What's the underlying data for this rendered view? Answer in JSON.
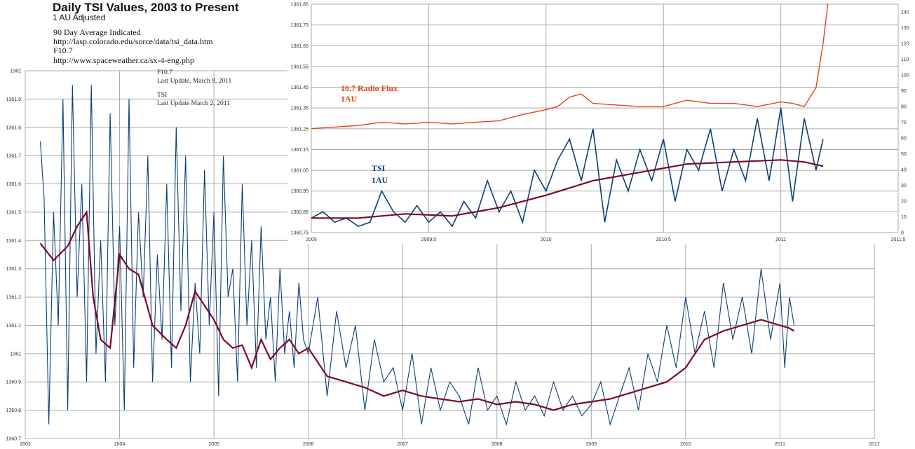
{
  "header": {
    "title": "Daily TSI Values, 2003 to Present",
    "subtitle": "1 AU Adjusted",
    "notes": [
      "90 Day Average Indicated",
      "http://lasp.colorado.edu/sorce/data/tsi_data.htm",
      "F10.7",
      "http://www.spaceweather.ca/sx-4-eng.php"
    ]
  },
  "updates": {
    "f107_label": "F10.7",
    "f107_date": "Last Update, March 9, 2011",
    "tsi_label": "TSI",
    "tsi_date": "Last Update March 2, 2011"
  },
  "colors": {
    "tsi": "#0b3f78",
    "avg": "#7a0a26",
    "radio": "#ee3f12",
    "grid": "#a9a9a9"
  },
  "chart_data": [
    {
      "type": "line",
      "title": "Daily TSI Values, 2003 to Present",
      "subtitle": "1 AU Adjusted",
      "xlim": [
        2003,
        2012
      ],
      "ylim": [
        1360.7,
        1362
      ],
      "x_ticks": [
        2003,
        2004,
        2005,
        2006,
        2007,
        2008,
        2009,
        2010,
        2011,
        2012
      ],
      "y_ticks": [
        "1360.7",
        "1360.8",
        "1360.9",
        "1361",
        "1361.1",
        "1361.2",
        "1361.3",
        "1361.4",
        "1361.5",
        "1361.6",
        "1361.7",
        "1361.8",
        "1361.9",
        "1362"
      ],
      "grid": true,
      "series": [
        {
          "role": "daily-tsi",
          "x": [
            2003.16,
            2003.2,
            2003.25,
            2003.3,
            2003.35,
            2003.4,
            2003.45,
            2003.5,
            2003.55,
            2003.6,
            2003.65,
            2003.7,
            2003.75,
            2003.8,
            2003.85,
            2003.9,
            2003.95,
            2004.0,
            2004.05,
            2004.1,
            2004.15,
            2004.2,
            2004.25,
            2004.3,
            2004.35,
            2004.4,
            2004.45,
            2004.5,
            2004.55,
            2004.6,
            2004.65,
            2004.7,
            2004.75,
            2004.8,
            2004.85,
            2004.9,
            2004.95,
            2005.0,
            2005.05,
            2005.1,
            2005.15,
            2005.2,
            2005.25,
            2005.3,
            2005.35,
            2005.4,
            2005.45,
            2005.5,
            2005.55,
            2005.6,
            2005.65,
            2005.7,
            2005.75,
            2005.8,
            2005.85,
            2005.9,
            2005.95,
            2006.0,
            2006.1,
            2006.2,
            2006.3,
            2006.4,
            2006.5,
            2006.6,
            2006.7,
            2006.8,
            2006.9,
            2007.0,
            2007.1,
            2007.2,
            2007.3,
            2007.4,
            2007.5,
            2007.6,
            2007.7,
            2007.8,
            2007.9,
            2008.0,
            2008.1,
            2008.2,
            2008.3,
            2008.4,
            2008.5,
            2008.6,
            2008.7,
            2008.8,
            2008.9,
            2009.0,
            2009.1,
            2009.2,
            2009.3,
            2009.4,
            2009.5,
            2009.6,
            2009.7,
            2009.8,
            2009.9,
            2010.0,
            2010.1,
            2010.2,
            2010.3,
            2010.4,
            2010.5,
            2010.6,
            2010.7,
            2010.8,
            2010.9,
            2011.0,
            2011.05,
            2011.1,
            2011.15
          ],
          "y": [
            1361.75,
            1361.55,
            1360.75,
            1361.5,
            1361.1,
            1361.9,
            1360.8,
            1361.95,
            1361.2,
            1361.6,
            1360.9,
            1361.95,
            1361.0,
            1361.4,
            1360.9,
            1361.85,
            1361.1,
            1361.45,
            1360.8,
            1361.9,
            1360.95,
            1361.5,
            1361.2,
            1361.7,
            1360.9,
            1361.35,
            1361.05,
            1361.6,
            1360.95,
            1361.8,
            1361.15,
            1361.7,
            1360.9,
            1361.25,
            1361.0,
            1361.65,
            1361.1,
            1361.5,
            1360.85,
            1361.7,
            1361.2,
            1361.3,
            1360.9,
            1361.6,
            1361.1,
            1361.4,
            1360.95,
            1361.45,
            1361.05,
            1361.2,
            1360.9,
            1361.3,
            1361.0,
            1361.15,
            1360.95,
            1361.25,
            1361.05,
            1361.0,
            1361.2,
            1360.85,
            1361.15,
            1360.95,
            1361.1,
            1360.8,
            1361.05,
            1360.9,
            1360.95,
            1360.8,
            1361.0,
            1360.75,
            1360.95,
            1360.8,
            1360.9,
            1360.85,
            1360.75,
            1360.95,
            1360.8,
            1360.85,
            1360.75,
            1360.9,
            1360.8,
            1360.85,
            1360.78,
            1360.9,
            1360.8,
            1360.85,
            1360.78,
            1360.82,
            1360.9,
            1360.75,
            1360.85,
            1360.95,
            1360.8,
            1361.0,
            1360.9,
            1361.1,
            1360.95,
            1361.2,
            1361.0,
            1361.15,
            1360.95,
            1361.25,
            1361.05,
            1361.2,
            1361.0,
            1361.3,
            1361.05,
            1361.25,
            1360.95,
            1361.2,
            1361.1
          ]
        },
        {
          "role": "90-day-average",
          "x": [
            2003.16,
            2003.3,
            2003.45,
            2003.55,
            2003.65,
            2003.72,
            2003.8,
            2003.9,
            2004.0,
            2004.1,
            2004.2,
            2004.35,
            2004.5,
            2004.6,
            2004.7,
            2004.8,
            2004.9,
            2005.0,
            2005.1,
            2005.2,
            2005.3,
            2005.4,
            2005.5,
            2005.6,
            2005.7,
            2005.8,
            2005.9,
            2006.0,
            2006.2,
            2006.4,
            2006.6,
            2006.8,
            2007.0,
            2007.2,
            2007.4,
            2007.6,
            2007.8,
            2008.0,
            2008.2,
            2008.4,
            2008.6,
            2008.8,
            2009.0,
            2009.2,
            2009.4,
            2009.6,
            2009.8,
            2010.0,
            2010.2,
            2010.4,
            2010.6,
            2010.8,
            2011.0,
            2011.1,
            2011.15
          ],
          "y": [
            1361.39,
            1361.33,
            1361.38,
            1361.45,
            1361.5,
            1361.2,
            1361.05,
            1361.02,
            1361.35,
            1361.3,
            1361.28,
            1361.1,
            1361.05,
            1361.02,
            1361.1,
            1361.22,
            1361.17,
            1361.12,
            1361.05,
            1361.02,
            1361.03,
            1360.95,
            1361.05,
            1360.98,
            1361.02,
            1361.05,
            1361.0,
            1361.02,
            1360.92,
            1360.9,
            1360.88,
            1360.85,
            1360.87,
            1360.85,
            1360.84,
            1360.83,
            1360.84,
            1360.82,
            1360.83,
            1360.82,
            1360.8,
            1360.82,
            1360.83,
            1360.84,
            1360.86,
            1360.88,
            1360.9,
            1360.95,
            1361.05,
            1361.08,
            1361.1,
            1361.12,
            1361.1,
            1361.09,
            1361.08
          ]
        }
      ]
    },
    {
      "type": "line",
      "xlim": [
        2009,
        2011.5
      ],
      "ylim": [
        1360.75,
        1361.85
      ],
      "y2lim": [
        0,
        145
      ],
      "x_ticks": [
        "2009",
        "2009.5",
        "2010",
        "2010.5",
        "2011",
        "2011.5"
      ],
      "y_ticks": [
        "1360.75",
        "1360.85",
        "1360.95",
        "1361.05",
        "1361.15",
        "1361.25",
        "1361.35",
        "1361.45",
        "1361.55",
        "1361.65",
        "1361.75",
        "1361.85"
      ],
      "y2_ticks": [
        "0",
        "10",
        "20",
        "30",
        "40",
        "50",
        "60",
        "70",
        "80",
        "90",
        "100",
        "110",
        "120",
        "130",
        "140"
      ],
      "grid": true,
      "labels": {
        "radio": [
          "10.7 Radio Flux",
          "1AU"
        ],
        "tsi": [
          "TSI",
          "1AU"
        ]
      },
      "series": [
        {
          "role": "radio-flux",
          "axis": "right",
          "x": [
            2009.0,
            2009.1,
            2009.2,
            2009.3,
            2009.4,
            2009.5,
            2009.6,
            2009.7,
            2009.8,
            2009.9,
            2010.0,
            2010.05,
            2010.1,
            2010.15,
            2010.2,
            2010.3,
            2010.4,
            2010.5,
            2010.6,
            2010.7,
            2010.8,
            2010.9,
            2011.0,
            2011.05,
            2011.1,
            2011.15,
            2011.18,
            2011.2
          ],
          "y": [
            66,
            67,
            68,
            70,
            69,
            70,
            69,
            70,
            71,
            75,
            78,
            80,
            86,
            88,
            82,
            81,
            80,
            80,
            84,
            82,
            82,
            80,
            83,
            82,
            80,
            92,
            120,
            145
          ]
        },
        {
          "role": "tsi-daily",
          "axis": "left",
          "x": [
            2009.0,
            2009.05,
            2009.1,
            2009.15,
            2009.2,
            2009.25,
            2009.3,
            2009.35,
            2009.4,
            2009.45,
            2009.5,
            2009.55,
            2009.6,
            2009.65,
            2009.7,
            2009.75,
            2009.8,
            2009.85,
            2009.9,
            2009.95,
            2010.0,
            2010.05,
            2010.1,
            2010.15,
            2010.2,
            2010.25,
            2010.3,
            2010.35,
            2010.4,
            2010.45,
            2010.5,
            2010.55,
            2010.6,
            2010.65,
            2010.7,
            2010.75,
            2010.8,
            2010.85,
            2010.9,
            2010.95,
            2011.0,
            2011.05,
            2011.1,
            2011.15,
            2011.18
          ],
          "y": [
            1360.82,
            1360.85,
            1360.8,
            1360.82,
            1360.78,
            1360.8,
            1360.95,
            1360.85,
            1360.8,
            1360.88,
            1360.8,
            1360.85,
            1360.78,
            1360.9,
            1360.82,
            1361.0,
            1360.85,
            1360.95,
            1360.8,
            1361.05,
            1360.95,
            1361.1,
            1361.2,
            1361.0,
            1361.25,
            1360.8,
            1361.1,
            1360.95,
            1361.15,
            1361.0,
            1361.2,
            1360.9,
            1361.15,
            1361.05,
            1361.25,
            1360.95,
            1361.15,
            1361.0,
            1361.3,
            1361.0,
            1361.35,
            1360.9,
            1361.3,
            1361.05,
            1361.2
          ]
        },
        {
          "role": "tsi-average",
          "axis": "left",
          "x": [
            2009.0,
            2009.2,
            2009.4,
            2009.6,
            2009.8,
            2010.0,
            2010.2,
            2010.4,
            2010.6,
            2010.8,
            2011.0,
            2011.1,
            2011.18
          ],
          "y": [
            1360.82,
            1360.82,
            1360.84,
            1360.83,
            1360.87,
            1360.93,
            1361.0,
            1361.04,
            1361.08,
            1361.09,
            1361.1,
            1361.09,
            1361.07
          ]
        }
      ]
    }
  ]
}
